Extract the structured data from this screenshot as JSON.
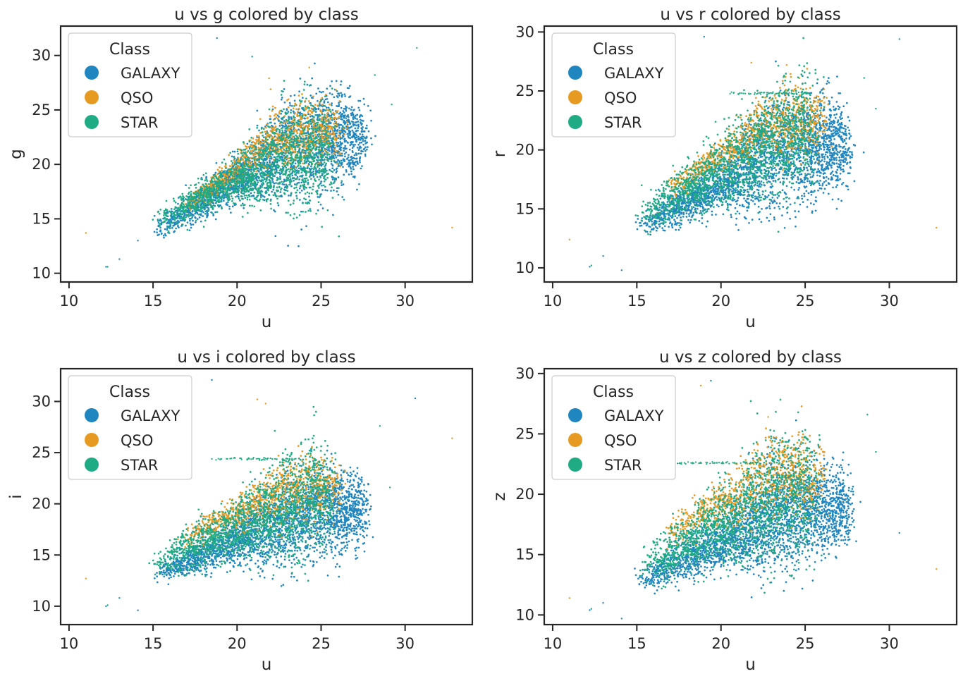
{
  "palette": {
    "GALAXY": "#1f86c0",
    "QSO": "#e69a22",
    "STAR": "#1fab83",
    "text": "#262626",
    "frame": "#262626"
  },
  "legend": {
    "title": "Class",
    "entries": [
      "GALAXY",
      "QSO",
      "STAR"
    ]
  },
  "chart_data": [
    {
      "type": "scatter",
      "title": "u vs g colored by class",
      "xlabel": "u",
      "ylabel": "g",
      "xlim": [
        9.5,
        34
      ],
      "ylim": [
        9.2,
        32.7
      ],
      "xticks": [
        10,
        15,
        20,
        25,
        30
      ],
      "yticks": [
        10,
        15,
        20,
        25,
        30
      ],
      "legend_title": "Class",
      "legend_position": "top-left",
      "series": [
        {
          "name": "GALAXY",
          "n": 2600,
          "cloud": [
            [
              [
                15.5,
                14.2
              ],
              [
                20,
                18.6
              ],
              [
                23,
                21.5
              ],
              [
                26,
                22.5
              ],
              [
                27.5,
                22.4
              ]
            ],
            [
              [
                15.5,
                0.5
              ],
              [
                20,
                1.0
              ],
              [
                23,
                2.4
              ],
              [
                26,
                2.2
              ],
              [
                27.5,
                1.6
              ]
            ]
          ],
          "outliers": [
            [
              18.8,
              31.6
            ],
            [
              20.9,
              29.9
            ],
            [
              12.2,
              10.6
            ],
            [
              13,
              11.3
            ],
            [
              14.1,
              13.0
            ],
            [
              25,
              24.9
            ]
          ]
        },
        {
          "name": "QSO",
          "n": 900,
          "cloud": [
            [
              [
                17,
                16.4
              ],
              [
                20,
                19.6
              ],
              [
                22,
                22.2
              ],
              [
                24.5,
                23.2
              ],
              [
                26,
                23.5
              ]
            ],
            [
              [
                17,
                0.4
              ],
              [
                20,
                0.6
              ],
              [
                22,
                1.3
              ],
              [
                24.5,
                1.6
              ],
              [
                26,
                1.3
              ]
            ]
          ],
          "outliers": [
            [
              11,
              13.7
            ],
            [
              32.8,
              14.2
            ],
            [
              21.9,
              27.9
            ],
            [
              24.3,
              28.9
            ]
          ]
        },
        {
          "name": "STAR",
          "n": 1600,
          "cloud": [
            [
              [
                15.5,
                14.8
              ],
              [
                19,
                18.0
              ],
              [
                22,
                19.8
              ],
              [
                24,
                20.8
              ],
              [
                25.5,
                21.2
              ]
            ],
            [
              [
                15.5,
                0.6
              ],
              [
                19,
                1.0
              ],
              [
                22,
                1.8
              ],
              [
                24,
                2.6
              ],
              [
                25.5,
                2.4
              ]
            ]
          ],
          "outliers": [
            [
              30.7,
              30.7
            ],
            [
              29.2,
              25.5
            ],
            [
              28.2,
              28.2
            ],
            [
              12.3,
              10.6
            ]
          ]
        }
      ]
    },
    {
      "type": "scatter",
      "title": "u vs r colored by class",
      "xlabel": "u",
      "ylabel": "r",
      "xlim": [
        9.5,
        34
      ],
      "ylim": [
        8.8,
        30.5
      ],
      "xticks": [
        10,
        15,
        20,
        25,
        30
      ],
      "yticks": [
        10,
        15,
        20,
        25,
        30
      ],
      "legend_title": "Class",
      "legend_position": "top-left",
      "series": [
        {
          "name": "GALAXY",
          "n": 2600,
          "cloud": [
            [
              [
                15.5,
                13.8
              ],
              [
                20,
                17.0
              ],
              [
                23,
                19.5
              ],
              [
                26,
                20.5
              ],
              [
                27.5,
                20.4
              ]
            ],
            [
              [
                15.5,
                0.5
              ],
              [
                20,
                1.1
              ],
              [
                23,
                2.4
              ],
              [
                26,
                2.2
              ],
              [
                27.5,
                1.6
              ]
            ]
          ],
          "outliers": [
            [
              19,
              29.6
            ],
            [
              30.6,
              29.4
            ],
            [
              12.2,
              10.1
            ],
            [
              13,
              11
            ],
            [
              14.1,
              9.8
            ]
          ]
        },
        {
          "name": "QSO",
          "n": 900,
          "cloud": [
            [
              [
                17,
                16.8
              ],
              [
                20,
                19.4
              ],
              [
                22,
                21.6
              ],
              [
                24.5,
                22.5
              ],
              [
                26,
                22.6
              ]
            ],
            [
              [
                17,
                0.5
              ],
              [
                20,
                0.7
              ],
              [
                22,
                1.2
              ],
              [
                24.5,
                1.6
              ],
              [
                26,
                1.3
              ]
            ]
          ],
          "outliers": [
            [
              11,
              12.4
            ],
            [
              32.8,
              13.4
            ],
            [
              21.8,
              27.4
            ],
            [
              23.9,
              27.2
            ]
          ]
        },
        {
          "name": "STAR",
          "n": 1600,
          "cloud": [
            [
              [
                15.5,
                14.5
              ],
              [
                19,
                17.6
              ],
              [
                22,
                19.8
              ],
              [
                24,
                21.2
              ],
              [
                25.5,
                21.5
              ]
            ],
            [
              [
                15.5,
                0.7
              ],
              [
                19,
                1.2
              ],
              [
                22,
                2.0
              ],
              [
                24,
                2.6
              ],
              [
                25.5,
                2.4
              ]
            ]
          ],
          "outliers": [
            [
              29.2,
              23.5
            ],
            [
              28.5,
              26.1
            ],
            [
              12.3,
              10.2
            ]
          ]
        }
      ],
      "streak": {
        "y": 24.8,
        "x": [
          20.5,
          25.2
        ]
      }
    },
    {
      "type": "scatter",
      "title": "u vs i colored by class",
      "xlabel": "u",
      "ylabel": "i",
      "xlim": [
        9.5,
        34
      ],
      "ylim": [
        8.2,
        33.2
      ],
      "xticks": [
        10,
        15,
        20,
        25,
        30
      ],
      "yticks": [
        10,
        15,
        20,
        25,
        30
      ],
      "legend_title": "Class",
      "legend_position": "top-left",
      "series": [
        {
          "name": "GALAXY",
          "n": 2600,
          "cloud": [
            [
              [
                15.5,
                13.3
              ],
              [
                20,
                16.4
              ],
              [
                23,
                18.5
              ],
              [
                26,
                19.4
              ],
              [
                27.5,
                19.3
              ]
            ],
            [
              [
                15.5,
                0.5
              ],
              [
                20,
                1.1
              ],
              [
                23,
                2.3
              ],
              [
                26,
                2.1
              ],
              [
                27.5,
                1.6
              ]
            ]
          ],
          "outliers": [
            [
              18.5,
              32.1
            ],
            [
              30.6,
              30.3
            ],
            [
              12.2,
              10
            ],
            [
              13,
              10.8
            ],
            [
              14.1,
              9.6
            ]
          ]
        },
        {
          "name": "QSO",
          "n": 900,
          "cloud": [
            [
              [
                17,
                16.8
              ],
              [
                20,
                19.0
              ],
              [
                22,
                21.0
              ],
              [
                24.5,
                21.8
              ],
              [
                26,
                21.6
              ]
            ],
            [
              [
                17,
                0.6
              ],
              [
                20,
                0.8
              ],
              [
                22,
                1.3
              ],
              [
                24.5,
                1.7
              ],
              [
                26,
                1.3
              ]
            ]
          ],
          "outliers": [
            [
              11,
              12.7
            ],
            [
              32.8,
              26.4
            ],
            [
              21.2,
              30.2
            ],
            [
              21.7,
              29.8
            ]
          ]
        },
        {
          "name": "STAR",
          "n": 1600,
          "cloud": [
            [
              [
                15.5,
                14.4
              ],
              [
                19,
                17.0
              ],
              [
                22,
                18.8
              ],
              [
                24,
                20.4
              ],
              [
                25.5,
                20.8
              ]
            ],
            [
              [
                15.5,
                0.8
              ],
              [
                19,
                1.3
              ],
              [
                22,
                2.1
              ],
              [
                24,
                2.8
              ],
              [
                25.5,
                2.5
              ]
            ]
          ],
          "outliers": [
            [
              29.1,
              21.6
            ],
            [
              28.5,
              27.6
            ],
            [
              12.3,
              10.1
            ]
          ]
        }
      ],
      "streak": {
        "y": 24.4,
        "x": [
          18.4,
          23.5
        ]
      }
    },
    {
      "type": "scatter",
      "title": "u vs z colored by class",
      "xlabel": "u",
      "ylabel": "z",
      "xlim": [
        9.5,
        34
      ],
      "ylim": [
        9.2,
        30.4
      ],
      "xticks": [
        10,
        15,
        20,
        25,
        30
      ],
      "yticks": [
        10,
        15,
        20,
        25,
        30
      ],
      "legend_title": "Class",
      "legend_position": "top-left",
      "series": [
        {
          "name": "GALAXY",
          "n": 2600,
          "cloud": [
            [
              [
                15.5,
                13.0
              ],
              [
                20,
                16.0
              ],
              [
                23,
                18.0
              ],
              [
                26,
                18.9
              ],
              [
                27.5,
                18.8
              ]
            ],
            [
              [
                15.5,
                0.5
              ],
              [
                20,
                1.1
              ],
              [
                23,
                2.2
              ],
              [
                26,
                2.0
              ],
              [
                27.5,
                1.5
              ]
            ]
          ],
          "outliers": [
            [
              19.4,
              29.4
            ],
            [
              30.6,
              16.8
            ],
            [
              12.2,
              10.4
            ],
            [
              13,
              11
            ],
            [
              14.1,
              9.7
            ]
          ]
        },
        {
          "name": "QSO",
          "n": 900,
          "cloud": [
            [
              [
                17,
                16.8
              ],
              [
                20,
                19.2
              ],
              [
                22,
                21.0
              ],
              [
                24,
                21.8
              ],
              [
                26,
                21.2
              ]
            ],
            [
              [
                17,
                0.7
              ],
              [
                20,
                0.9
              ],
              [
                22,
                1.5
              ],
              [
                24,
                1.9
              ],
              [
                26,
                1.4
              ]
            ]
          ],
          "outliers": [
            [
              11,
              11.4
            ],
            [
              32.8,
              13.8
            ],
            [
              18.8,
              29
            ],
            [
              22.8,
              26.4
            ]
          ]
        },
        {
          "name": "STAR",
          "n": 1600,
          "cloud": [
            [
              [
                15.5,
                14.0
              ],
              [
                19,
                16.8
              ],
              [
                22,
                18.8
              ],
              [
                24,
                20.0
              ],
              [
                25.5,
                20.2
              ]
            ],
            [
              [
                15.5,
                0.8
              ],
              [
                19,
                1.4
              ],
              [
                22,
                2.3
              ],
              [
                24,
                2.8
              ],
              [
                25.5,
                2.5
              ]
            ]
          ],
          "outliers": [
            [
              29.2,
              23.5
            ],
            [
              28.7,
              26.6
            ],
            [
              12.3,
              10.5
            ]
          ]
        }
      ],
      "streak": {
        "y": 22.6,
        "x": [
          17.4,
          22.6
        ]
      }
    }
  ]
}
